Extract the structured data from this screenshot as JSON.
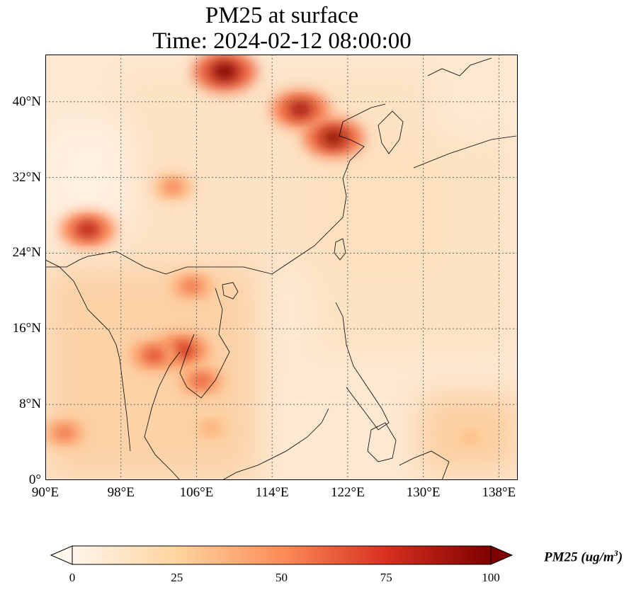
{
  "title": {
    "line1": "PM25 at surface",
    "line2": "Time: 2024-02-12 08:00:00"
  },
  "map": {
    "lon_range": [
      90,
      140
    ],
    "lat_range": [
      0,
      45
    ],
    "x_ticks": [
      "90°E",
      "98°E",
      "106°E",
      "114°E",
      "122°E",
      "130°E",
      "138°E"
    ],
    "x_tick_values": [
      90,
      98,
      106,
      114,
      122,
      130,
      138
    ],
    "y_ticks": [
      "0°",
      "8°N",
      "16°N",
      "24°N",
      "32°N",
      "40°N"
    ],
    "y_tick_values": [
      0,
      8,
      16,
      24,
      32,
      40
    ],
    "gridlines": true,
    "hotspots": [
      {
        "lon": 109,
        "lat": 43.2,
        "value": 100
      },
      {
        "lon": 117,
        "lat": 39.2,
        "value": 90
      },
      {
        "lon": 120.5,
        "lat": 36.2,
        "value": 95
      },
      {
        "lon": 94.5,
        "lat": 26.5,
        "value": 85
      },
      {
        "lon": 104.5,
        "lat": 13.7,
        "value": 80
      },
      {
        "lon": 101.5,
        "lat": 13.2,
        "value": 70
      },
      {
        "lon": 106.5,
        "lat": 10.5,
        "value": 65
      },
      {
        "lon": 105.5,
        "lat": 20.5,
        "value": 60
      },
      {
        "lon": 103.5,
        "lat": 31,
        "value": 55
      },
      {
        "lon": 92,
        "lat": 5,
        "value": 60
      },
      {
        "lon": 107.5,
        "lat": 5.5,
        "value": 45
      },
      {
        "lon": 135,
        "lat": 4.5,
        "value": 40
      }
    ]
  },
  "colorbar": {
    "label": "PM25 (ug/m",
    "label_exp": "3",
    "label_close": ")",
    "ticks": [
      "0",
      "25",
      "50",
      "75",
      "100"
    ],
    "range": [
      0,
      100
    ],
    "colors": [
      "#fff5eb",
      "#fdd49e",
      "#fc8d59",
      "#d7301f",
      "#7f0000"
    ]
  }
}
